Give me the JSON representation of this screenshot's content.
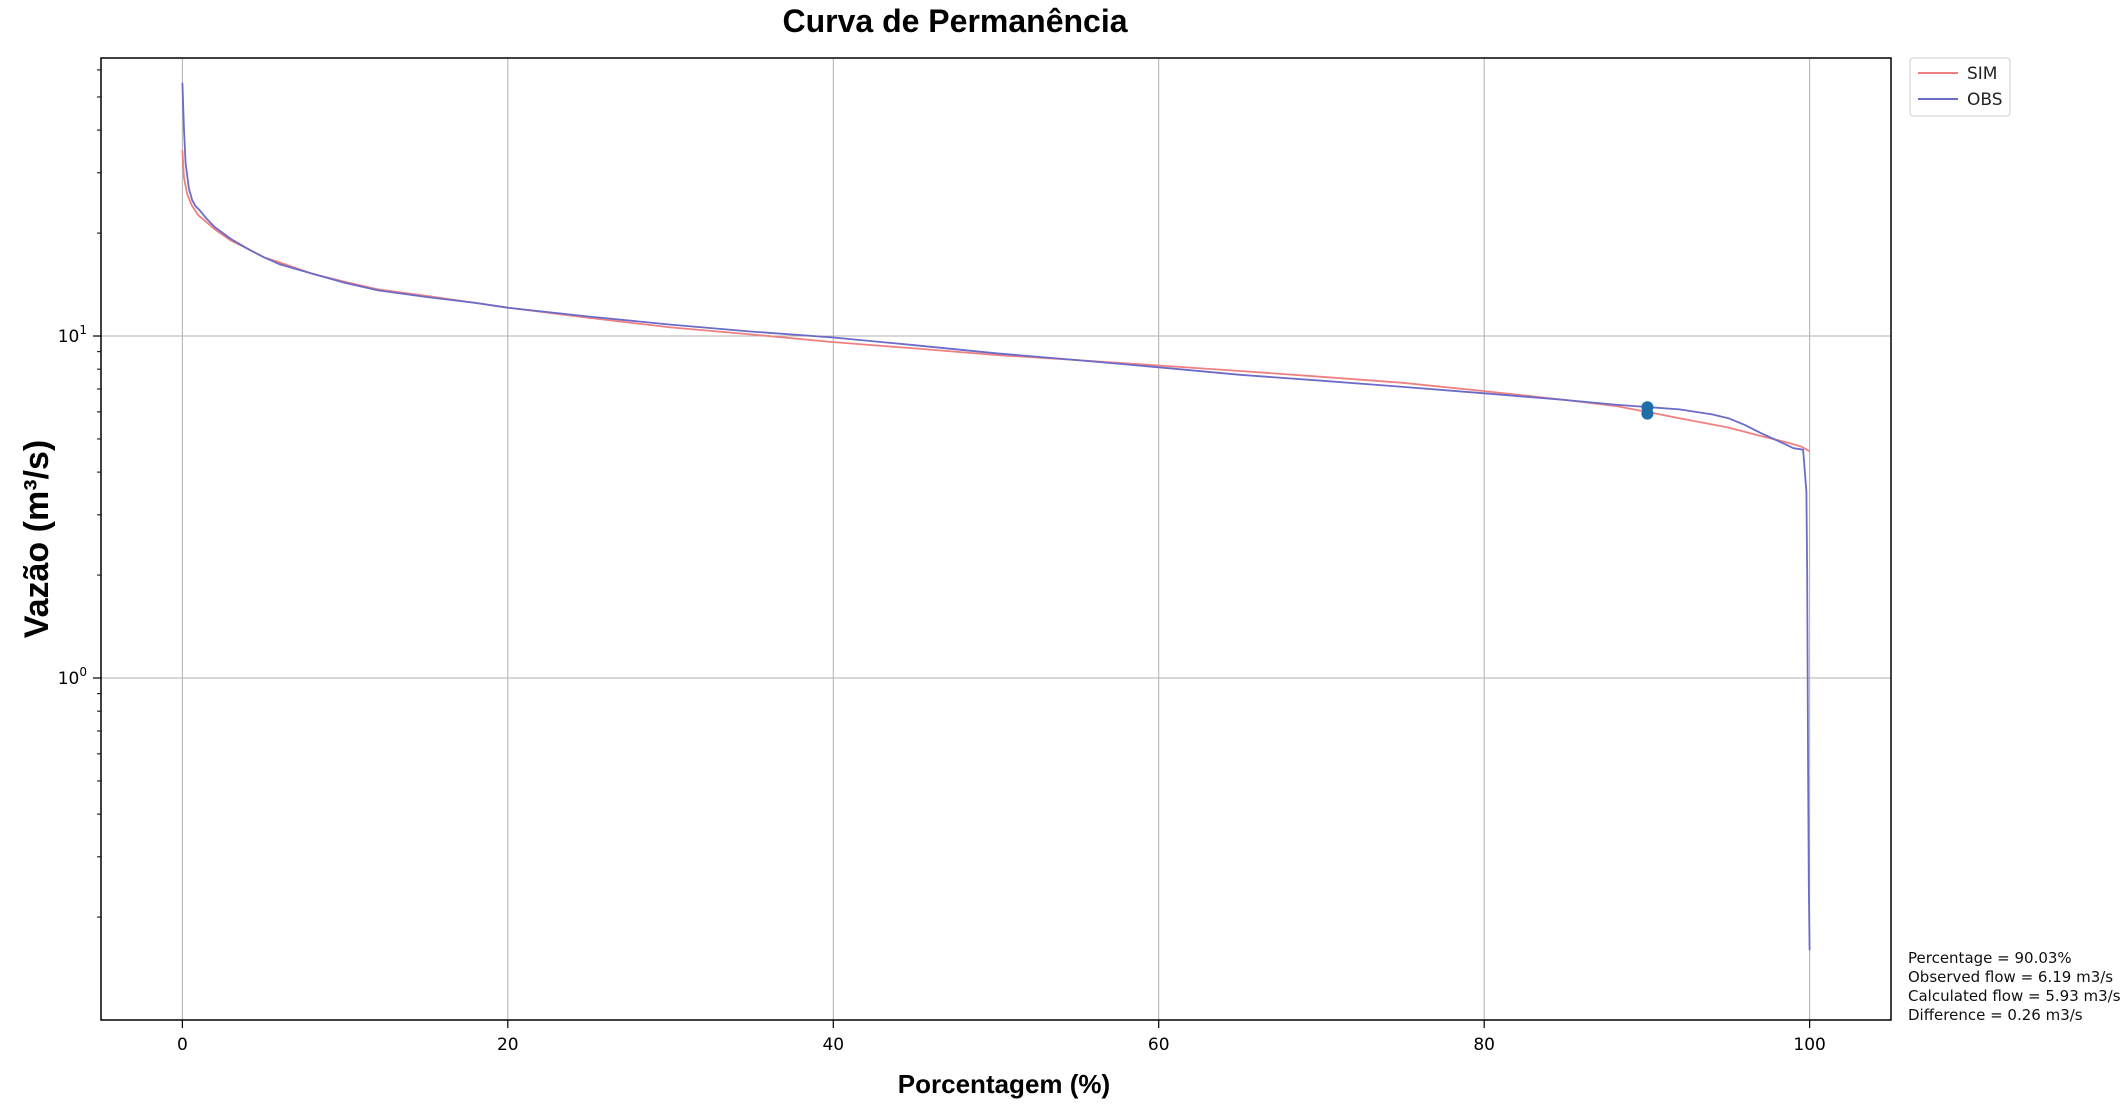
{
  "chart_data": {
    "type": "line",
    "title": "Curva de Permanência",
    "xlabel": "Porcentagem (%)",
    "ylabel": "Vazão (m³/s)",
    "xlim": [
      -5,
      105
    ],
    "ylim": [
      0.1,
      65
    ],
    "yscale": "log",
    "grid": true,
    "legend_position": "outside-top-right",
    "x_ticks": [
      0,
      20,
      40,
      60,
      80,
      100
    ],
    "x_tick_labels": [
      "0",
      "20",
      "40",
      "60",
      "80",
      "100"
    ],
    "y_ticks": [
      1,
      10
    ],
    "y_tick_labels": [
      {
        "base": "10",
        "exp": "0"
      },
      {
        "base": "10",
        "exp": "1"
      }
    ],
    "series": [
      {
        "name": "SIM",
        "color": "#f08080",
        "x": [
          0,
          0.1,
          0.3,
          0.6,
          1,
          1.5,
          2,
          3,
          4,
          5,
          6,
          8,
          10,
          12,
          15,
          18,
          20,
          25,
          30,
          35,
          40,
          45,
          50,
          55,
          60,
          65,
          70,
          75,
          80,
          85,
          88,
          90,
          92,
          95,
          97,
          98.5,
          99.5,
          100
        ],
        "y": [
          35,
          29,
          26,
          24,
          22.5,
          21.5,
          20.5,
          19,
          18,
          17,
          16.4,
          15.2,
          14.4,
          13.7,
          13.1,
          12.5,
          12.1,
          11.3,
          10.6,
          10.1,
          9.6,
          9.2,
          8.8,
          8.5,
          8.2,
          7.9,
          7.6,
          7.3,
          6.9,
          6.5,
          6.25,
          6.0,
          5.75,
          5.4,
          5.1,
          4.9,
          4.75,
          4.6
        ]
      },
      {
        "name": "OBS",
        "color": "#6b6bc9",
        "x": [
          0,
          0.1,
          0.2,
          0.4,
          0.6,
          0.8,
          1,
          1.5,
          2,
          3,
          4,
          5,
          6,
          8,
          10,
          12,
          15,
          18,
          20,
          25,
          30,
          35,
          40,
          45,
          50,
          55,
          60,
          65,
          70,
          75,
          80,
          85,
          88,
          90,
          92,
          94,
          95,
          96,
          97,
          98,
          99,
          99.6,
          99.8,
          99.85,
          99.9,
          99.95,
          100
        ],
        "y": [
          55,
          40,
          32,
          27,
          25,
          24,
          23.5,
          22,
          20.8,
          19.2,
          18,
          17,
          16.2,
          15.2,
          14.3,
          13.6,
          13,
          12.5,
          12.1,
          11.4,
          10.8,
          10.3,
          9.9,
          9.4,
          8.9,
          8.5,
          8.1,
          7.7,
          7.4,
          7.1,
          6.8,
          6.5,
          6.3,
          6.2,
          6.1,
          5.9,
          5.75,
          5.5,
          5.2,
          4.95,
          4.7,
          4.65,
          3.5,
          2.0,
          0.6,
          0.25,
          0.16
        ]
      }
    ],
    "marker": {
      "x": 90.03,
      "y_observed": 6.19,
      "y_calculated": 5.93,
      "color": "#1f6ea8"
    },
    "info": {
      "line1": "Percentage = 90.03%",
      "line2": "Observed flow = 6.19 m3/s",
      "line3": "Calculated flow = 5.93 m3/s",
      "line4": "Difference = 0.26 m3/s"
    }
  }
}
